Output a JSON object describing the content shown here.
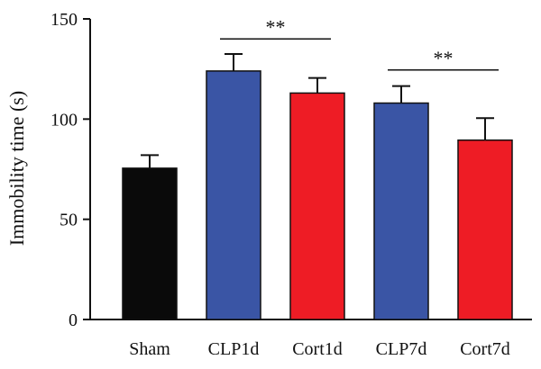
{
  "chart_data": {
    "type": "bar",
    "ylabel": "Immobility time (s)",
    "xlabel": "",
    "ylim": [
      0,
      150
    ],
    "yticks": [
      0,
      50,
      100,
      150
    ],
    "categories": [
      "Sham",
      "CLP1d",
      "Cort1d",
      "CLP7d",
      "Cort7d"
    ],
    "values": [
      75.5,
      124,
      113,
      108,
      89.5
    ],
    "errors": [
      6.5,
      8.5,
      7.5,
      8.5,
      11
    ],
    "bar_colors": [
      "#0a0a0a",
      "#3a55a5",
      "#ee1c25",
      "#3a55a5",
      "#ee1c25"
    ],
    "significance": [
      {
        "from": "CLP1d",
        "to": "Cort1d",
        "label": "**",
        "y": 140
      },
      {
        "from": "CLP7d",
        "to": "Cort7d",
        "label": "**",
        "y": 124.5
      }
    ]
  }
}
